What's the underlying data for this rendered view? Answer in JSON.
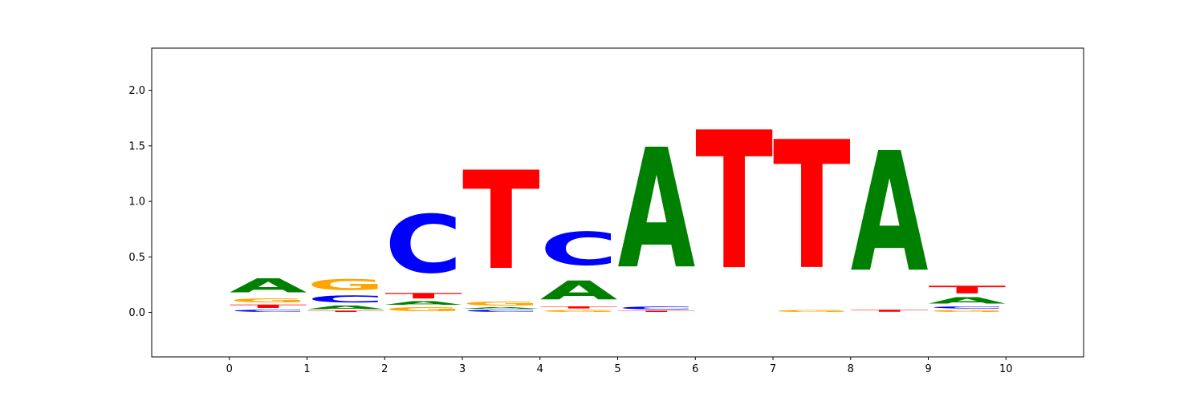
{
  "chart_data": {
    "type": "sequence-logo",
    "title": "",
    "xlabel": "",
    "ylabel": "",
    "xlim": [
      -1,
      11
    ],
    "ylim": [
      -0.4,
      2.38
    ],
    "x_ticks": [
      "0",
      "1",
      "2",
      "3",
      "4",
      "5",
      "6",
      "7",
      "8",
      "9",
      "10"
    ],
    "y_ticks": [
      "0.0",
      "0.5",
      "1.0",
      "1.5",
      "2.0"
    ],
    "grid": false,
    "legend": "none",
    "colors": {
      "A": "#008000",
      "C": "#0000ff",
      "G": "#ffa500",
      "T": "#ff0000"
    },
    "positions": [
      {
        "stack": [
          {
            "letter": "C",
            "height": 0.03
          },
          {
            "letter": "T",
            "height": 0.05
          },
          {
            "letter": "G",
            "height": 0.06
          },
          {
            "letter": "A",
            "height": 0.2
          }
        ]
      },
      {
        "stack": [
          {
            "letter": "T",
            "height": 0.02
          },
          {
            "letter": "A",
            "height": 0.05
          },
          {
            "letter": "C",
            "height": 0.1
          },
          {
            "letter": "G",
            "height": 0.16
          }
        ]
      },
      {
        "stack": [
          {
            "letter": "G",
            "height": 0.06
          },
          {
            "letter": "A",
            "height": 0.05
          },
          {
            "letter": "T",
            "height": 0.08
          },
          {
            "letter": "C",
            "height": 0.84
          }
        ]
      },
      {
        "stack": [
          {
            "letter": "C",
            "height": 0.03
          },
          {
            "letter": "A",
            "height": 0.02
          },
          {
            "letter": "G",
            "height": 0.06
          },
          {
            "letter": "T",
            "height": 1.42
          }
        ]
      },
      {
        "stack": [
          {
            "letter": "G",
            "height": 0.03
          },
          {
            "letter": "T",
            "height": 0.03
          },
          {
            "letter": "A",
            "height": 0.27
          },
          {
            "letter": "C",
            "height": 0.48
          }
        ]
      },
      {
        "stack": [
          {
            "letter": "T",
            "height": 0.02
          },
          {
            "letter": "C",
            "height": 0.04
          },
          {
            "letter": "A",
            "height": 1.73
          }
        ]
      },
      {
        "stack": [
          {
            "letter": "T",
            "height": 1.99
          }
        ]
      },
      {
        "stack": [
          {
            "letter": "G",
            "height": 0.03
          },
          {
            "letter": "T",
            "height": 1.85
          }
        ]
      },
      {
        "stack": [
          {
            "letter": "T",
            "height": 0.03
          },
          {
            "letter": "A",
            "height": 1.73
          }
        ]
      },
      {
        "stack": [
          {
            "letter": "G",
            "height": 0.03
          },
          {
            "letter": "C",
            "height": 0.03
          },
          {
            "letter": "A",
            "height": 0.09
          },
          {
            "letter": "T",
            "height": 0.11
          }
        ]
      }
    ]
  }
}
